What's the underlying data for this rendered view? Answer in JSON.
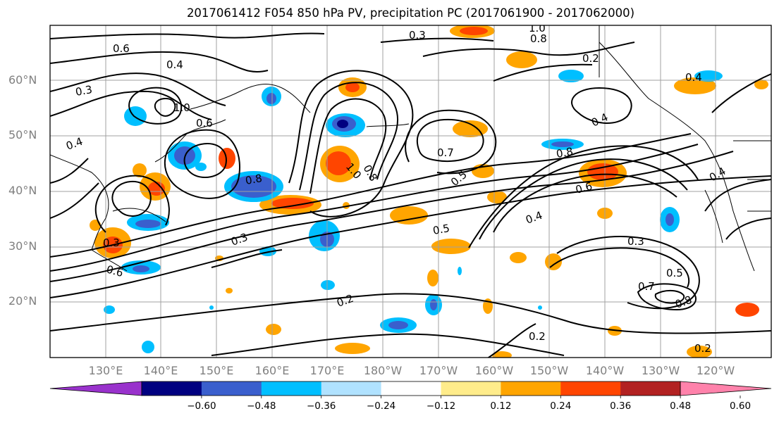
{
  "title": "2017061412 F054 850 hPa PV, precipitation PC (2017061900 - 2017062000)",
  "map": {
    "lat_labels": [
      "60°N",
      "50°N",
      "40°N",
      "30°N",
      "20°N"
    ],
    "lon_labels": [
      "130°E",
      "140°E",
      "150°E",
      "160°E",
      "170°E",
      "180°W",
      "170°W",
      "160°W",
      "150°W",
      "140°W",
      "130°W",
      "120°W"
    ],
    "contour_labels": [
      "0.2",
      "0.3",
      "0.4",
      "0.5",
      "0.6",
      "0.7",
      "0.8",
      "1.0"
    ]
  },
  "colorbar": {
    "ticks": [
      "−0.60",
      "−0.48",
      "−0.36",
      "−0.24",
      "−0.12",
      "0.12",
      "0.24",
      "0.36",
      "0.48",
      "0.60"
    ],
    "colors": [
      "#9932cc",
      "#000080",
      "#3a5fcd",
      "#00bfff",
      "#b0e2ff",
      "#ffffff",
      "#ffec8b",
      "#ffa500",
      "#ff4500",
      "#b22222",
      "#ff82ab"
    ]
  },
  "colors": {
    "grid": "#a0a0a0",
    "contour": "#000000",
    "coast": "#000000"
  }
}
